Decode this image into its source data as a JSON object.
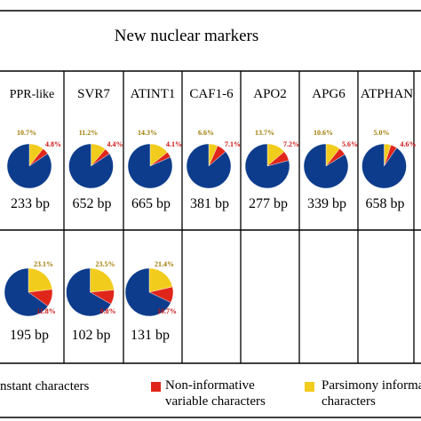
{
  "chart_data": {
    "type": "pie",
    "title": "New nuclear markers",
    "colors": {
      "constant": "#0d3c8c",
      "non_informative": "#e0261b",
      "parsimony": "#f2cc1c",
      "grid": "#000000",
      "pct_parsimony": "#a07a00",
      "pct_noninf": "#cc1111"
    },
    "markers_row1": [
      {
        "name": "PPR-like",
        "parsimony_pct": "10.7%",
        "noninf_pct": "4.8%",
        "parsimony": 10.7,
        "noninf": 4.8,
        "size": "233 bp"
      },
      {
        "name": "SVR7",
        "parsimony_pct": "11.2%",
        "noninf_pct": "4.4%",
        "parsimony": 11.2,
        "noninf": 4.4,
        "size": "652 bp"
      },
      {
        "name": "ATINT1",
        "parsimony_pct": "14.3%",
        "noninf_pct": "4.1%",
        "parsimony": 14.3,
        "noninf": 4.1,
        "size": "665 bp"
      },
      {
        "name": "CAF1-6",
        "parsimony_pct": "6.6%",
        "noninf_pct": "7.1%",
        "parsimony": 6.6,
        "noninf": 7.1,
        "size": "381 bp"
      },
      {
        "name": "APO2",
        "parsimony_pct": "13.7%",
        "noninf_pct": "7.2%",
        "parsimony": 13.7,
        "noninf": 7.2,
        "size": "277 bp"
      },
      {
        "name": "APG6",
        "parsimony_pct": "10.6%",
        "noninf_pct": "5.6%",
        "parsimony": 10.6,
        "noninf": 5.6,
        "size": "339 bp"
      },
      {
        "name": "ATPHAN",
        "parsimony_pct": "5.0%",
        "noninf_pct": "4.6%",
        "parsimony": 5.0,
        "noninf": 4.6,
        "size": "658 bp"
      }
    ],
    "markers_row2": [
      {
        "parsimony_pct": "23.1%",
        "noninf_pct": "11.8%",
        "parsimony": 23.1,
        "noninf": 11.8,
        "size": "195 bp"
      },
      {
        "parsimony_pct": "23.5%",
        "noninf_pct": "9.8%",
        "parsimony": 23.5,
        "noninf": 9.8,
        "size": "102 bp"
      },
      {
        "parsimony_pct": "21.4%",
        "noninf_pct": "10.7%",
        "parsimony": 21.4,
        "noninf": 10.7,
        "size": "131 bp"
      }
    ],
    "legend": {
      "constant": "nstant characters",
      "non_informative_line1": "Non-informative",
      "non_informative_line2": "variable characters",
      "parsimony_line1": "Parsimony informa",
      "parsimony_line2": "characters"
    }
  }
}
